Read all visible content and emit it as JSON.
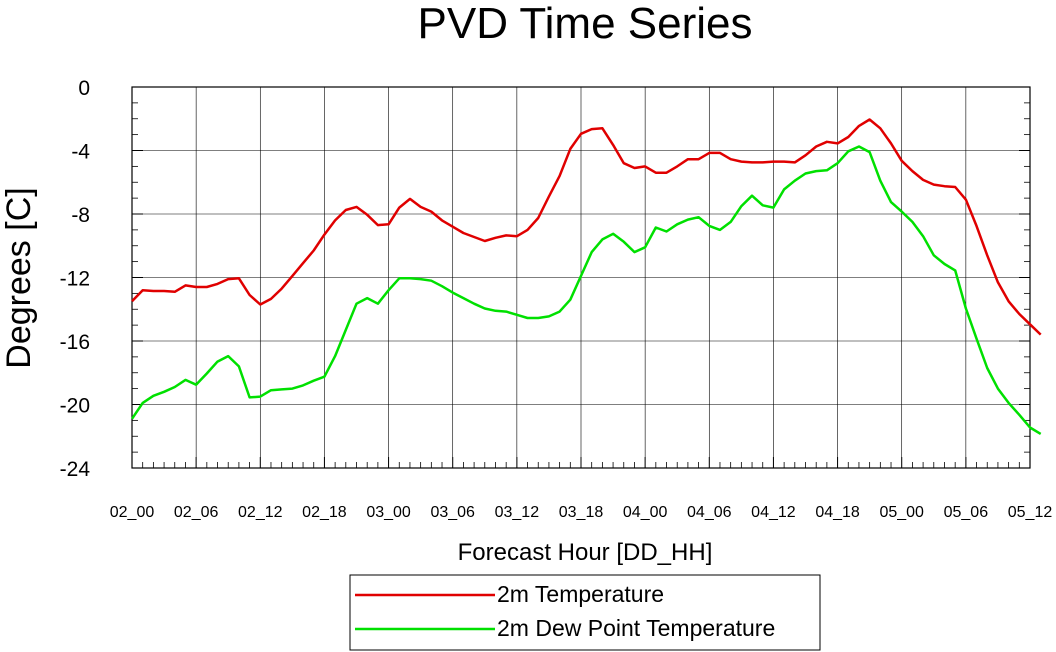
{
  "chart_data": {
    "type": "line",
    "title": "PVD Time Series",
    "xlabel": "Forecast Hour [DD_HH]",
    "ylabel": "Degrees [C]",
    "ylim": [
      -24,
      0
    ],
    "yticks": [
      "0",
      "-4",
      "-8",
      "-12",
      "-16",
      "-20",
      "-24"
    ],
    "ytick_values": [
      0,
      -4,
      -8,
      -12,
      -16,
      -20,
      -24
    ],
    "xticks": [
      "02_00",
      "02_06",
      "02_12",
      "02_18",
      "03_00",
      "03_06",
      "03_12",
      "03_18",
      "04_00",
      "04_06",
      "04_12",
      "04_18",
      "05_00",
      "05_06",
      "05_12"
    ],
    "x_hours_per_point": 1,
    "grid": true,
    "legend_position": "bottom-center",
    "series": [
      {
        "name": "2m Temperature",
        "color": "#e00000",
        "values": [
          -13.5,
          -12.8,
          -12.85,
          -12.85,
          -12.9,
          -12.5,
          -12.6,
          -12.6,
          -12.4,
          -12.1,
          -12.05,
          -13.1,
          -13.7,
          -13.35,
          -12.7,
          -11.9,
          -11.1,
          -10.3,
          -9.3,
          -8.4,
          -7.75,
          -7.55,
          -8.05,
          -8.7,
          -8.65,
          -7.6,
          -7.05,
          -7.55,
          -7.85,
          -8.4,
          -8.8,
          -9.2,
          -9.45,
          -9.7,
          -9.5,
          -9.35,
          -9.4,
          -9.0,
          -8.25,
          -6.9,
          -5.6,
          -3.9,
          -2.95,
          -2.65,
          -2.6,
          -3.65,
          -4.8,
          -5.1,
          -5.0,
          -5.4,
          -5.4,
          -5.0,
          -4.55,
          -4.55,
          -4.15,
          -4.15,
          -4.55,
          -4.7,
          -4.75,
          -4.75,
          -4.7,
          -4.7,
          -4.75,
          -4.3,
          -3.75,
          -3.45,
          -3.55,
          -3.15,
          -2.45,
          -2.05,
          -2.6,
          -3.55,
          -4.65,
          -5.3,
          -5.85,
          -6.15,
          -6.25,
          -6.3,
          -7.1,
          -8.75,
          -10.6,
          -12.3,
          -13.5,
          -14.3,
          -14.95,
          -15.6
        ]
      },
      {
        "name": "2m Dew Point Temperature",
        "color": "#00e000",
        "values": [
          -20.9,
          -19.9,
          -19.45,
          -19.2,
          -18.9,
          -18.45,
          -18.75,
          -18.05,
          -17.3,
          -16.95,
          -17.6,
          -19.55,
          -19.5,
          -19.1,
          -19.05,
          -19.0,
          -18.8,
          -18.5,
          -18.25,
          -16.95,
          -15.3,
          -13.65,
          -13.3,
          -13.65,
          -12.8,
          -12.05,
          -12.05,
          -12.1,
          -12.2,
          -12.55,
          -12.95,
          -13.3,
          -13.65,
          -13.95,
          -14.1,
          -14.15,
          -14.35,
          -14.55,
          -14.55,
          -14.45,
          -14.15,
          -13.4,
          -11.9,
          -10.4,
          -9.6,
          -9.25,
          -9.75,
          -10.4,
          -10.1,
          -8.85,
          -9.1,
          -8.65,
          -8.35,
          -8.2,
          -8.75,
          -9.0,
          -8.5,
          -7.5,
          -6.85,
          -7.45,
          -7.6,
          -6.45,
          -5.9,
          -5.45,
          -5.3,
          -5.25,
          -4.8,
          -4.05,
          -3.75,
          -4.1,
          -5.9,
          -7.25,
          -7.85,
          -8.5,
          -9.4,
          -10.6,
          -11.15,
          -11.55,
          -13.95,
          -15.85,
          -17.7,
          -19.0,
          -19.9,
          -20.65,
          -21.45,
          -21.85
        ]
      }
    ]
  }
}
